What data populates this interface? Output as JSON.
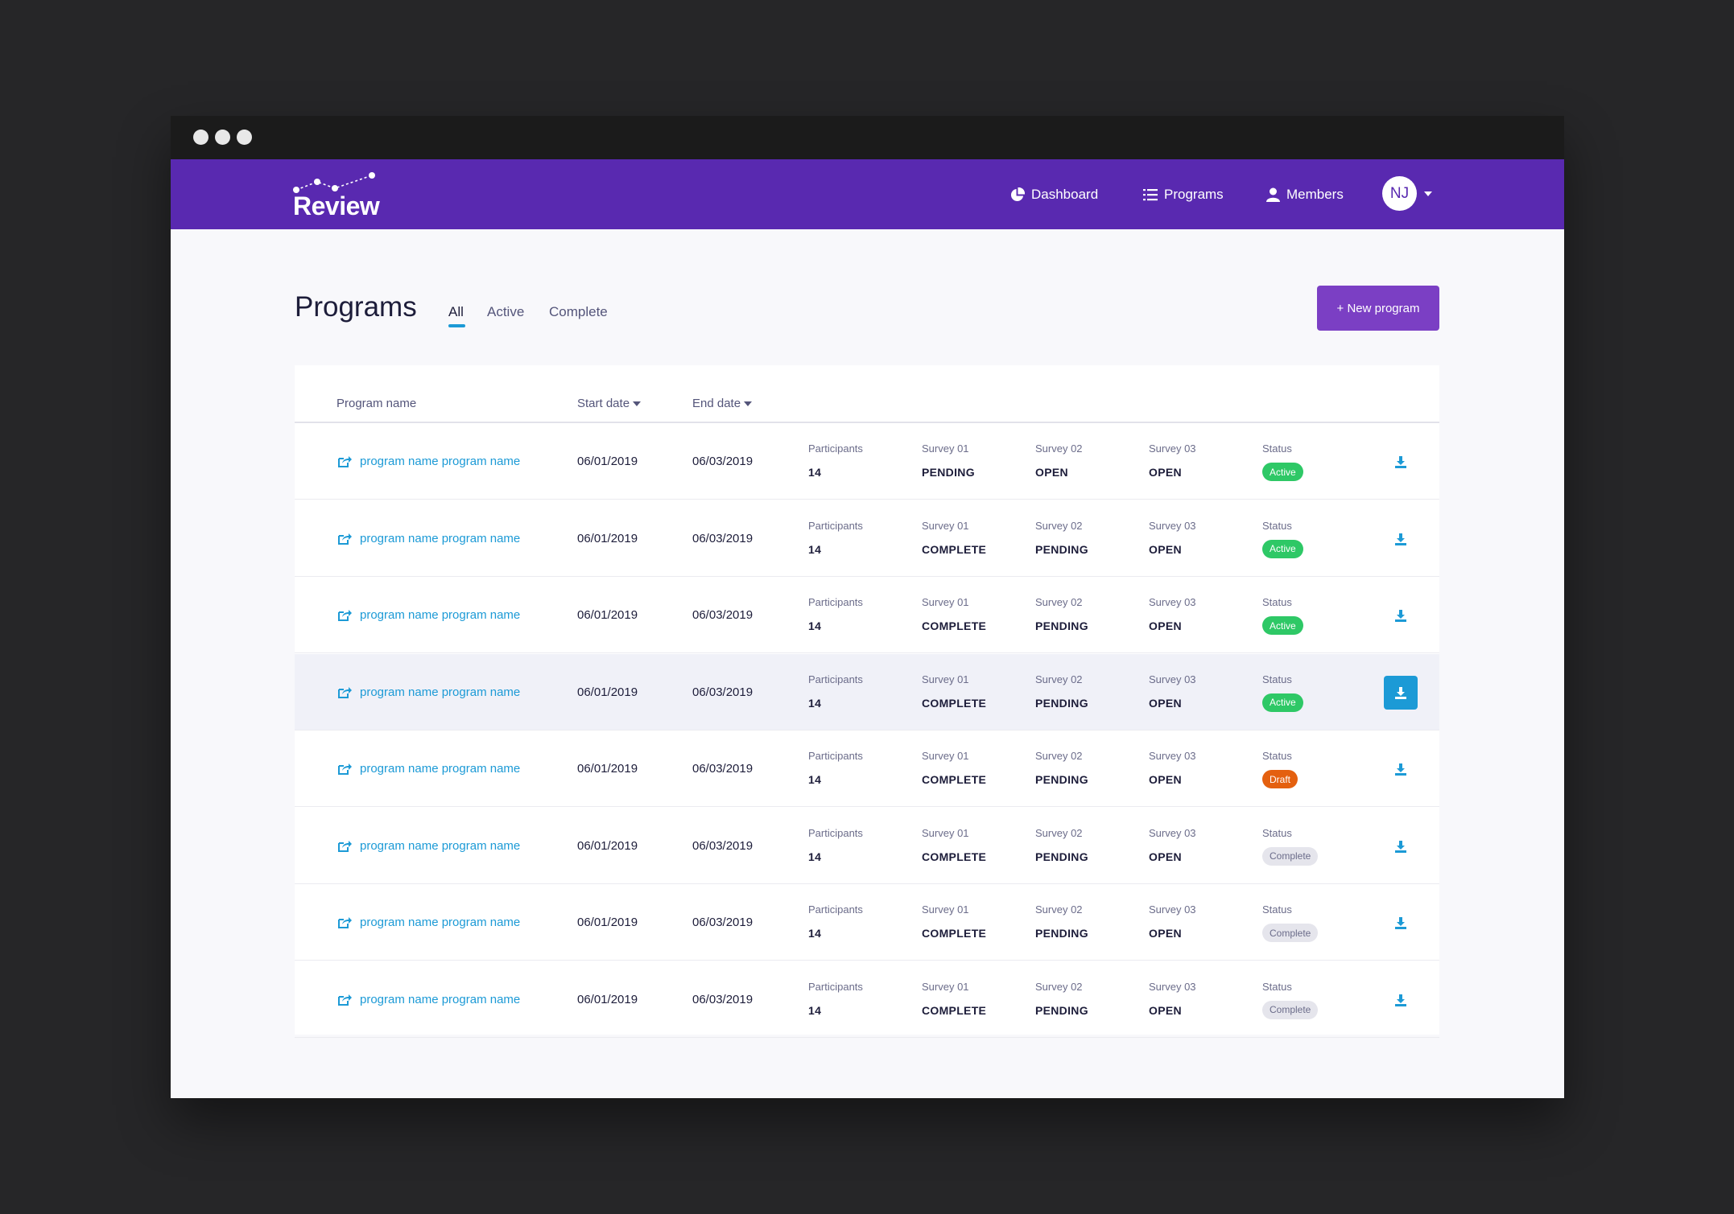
{
  "app": {
    "logo_text": "Review"
  },
  "nav": {
    "dashboard": "Dashboard",
    "programs": "Programs",
    "members": "Members",
    "avatar_initials": "NJ"
  },
  "page": {
    "title": "Programs",
    "tabs": [
      "All",
      "Active",
      "Complete"
    ],
    "active_tab": "All",
    "new_button": "+ New program"
  },
  "table": {
    "headers": {
      "program_name": "Program name",
      "start_date": "Start date",
      "end_date": "End date"
    },
    "labels": {
      "participants": "Participants",
      "survey1": "Survey 01",
      "survey2": "Survey 02",
      "survey3": "Survey 03",
      "status": "Status"
    },
    "rows": [
      {
        "name": "program name program name",
        "start": "06/01/2019",
        "end": "06/03/2019",
        "participants": "14",
        "s1": "PENDING",
        "s2": "OPEN",
        "s3": "OPEN",
        "status": "Active"
      },
      {
        "name": "program name program name",
        "start": "06/01/2019",
        "end": "06/03/2019",
        "participants": "14",
        "s1": "COMPLETE",
        "s2": "PENDING",
        "s3": "OPEN",
        "status": "Active"
      },
      {
        "name": "program name program name",
        "start": "06/01/2019",
        "end": "06/03/2019",
        "participants": "14",
        "s1": "COMPLETE",
        "s2": "PENDING",
        "s3": "OPEN",
        "status": "Active"
      },
      {
        "name": "program name program name",
        "start": "06/01/2019",
        "end": "06/03/2019",
        "participants": "14",
        "s1": "COMPLETE",
        "s2": "PENDING",
        "s3": "OPEN",
        "status": "Active"
      },
      {
        "name": "program name program name",
        "start": "06/01/2019",
        "end": "06/03/2019",
        "participants": "14",
        "s1": "COMPLETE",
        "s2": "PENDING",
        "s3": "OPEN",
        "status": "Draft"
      },
      {
        "name": "program name program name",
        "start": "06/01/2019",
        "end": "06/03/2019",
        "participants": "14",
        "s1": "COMPLETE",
        "s2": "PENDING",
        "s3": "OPEN",
        "status": "Complete"
      },
      {
        "name": "program name program name",
        "start": "06/01/2019",
        "end": "06/03/2019",
        "participants": "14",
        "s1": "COMPLETE",
        "s2": "PENDING",
        "s3": "OPEN",
        "status": "Complete"
      },
      {
        "name": "program name program name",
        "start": "06/01/2019",
        "end": "06/03/2019",
        "participants": "14",
        "s1": "COMPLETE",
        "s2": "PENDING",
        "s3": "OPEN",
        "status": "Complete"
      }
    ],
    "highlighted_row": 3
  },
  "colors": {
    "brand": "#5929b0",
    "button": "#7b3fc4",
    "link": "#1c9ad6",
    "active": "#2ec866",
    "draft": "#e4600f",
    "complete": "#e5e5ec"
  },
  "icons": {
    "dashboard": "pie-chart-icon",
    "programs": "list-icon",
    "members": "user-icon",
    "row_link": "external-link-icon",
    "download": "download-icon"
  }
}
